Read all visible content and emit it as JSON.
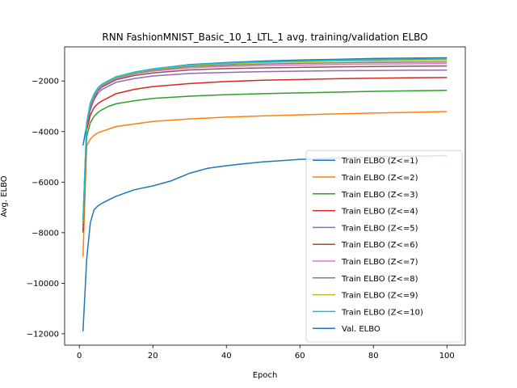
{
  "chart_data": {
    "type": "line",
    "title": "RNN FashionMNIST_Basic_10_1_LTL_1 avg. training/validation ELBO",
    "xlabel": "Epoch",
    "ylabel": "Avg. ELBO",
    "xlim": [
      -4,
      105
    ],
    "ylim": [
      -12450,
      -650
    ],
    "xticks": [
      0,
      20,
      40,
      60,
      80,
      100
    ],
    "yticks": [
      -12000,
      -10000,
      -8000,
      -6000,
      -4000,
      -2000
    ],
    "ytick_labels": [
      "−12000",
      "−10000",
      "−8000",
      "−6000",
      "−4000",
      "−2000"
    ],
    "grid": false,
    "legend_position": "lower-right",
    "series": [
      {
        "name": "Train ELBO (Z<=1)",
        "color": "#1f77b4",
        "points": [
          [
            1,
            -4550
          ],
          [
            2,
            -3750
          ],
          [
            3,
            -3150
          ],
          [
            4,
            -2700
          ],
          [
            5,
            -2400
          ],
          [
            6,
            -2250
          ],
          [
            8,
            -2050
          ],
          [
            10,
            -1850
          ],
          [
            15,
            -1650
          ],
          [
            20,
            -1520
          ],
          [
            30,
            -1350
          ],
          [
            40,
            -1270
          ],
          [
            50,
            -1210
          ],
          [
            60,
            -1170
          ],
          [
            70,
            -1140
          ],
          [
            80,
            -1110
          ],
          [
            90,
            -1095
          ],
          [
            100,
            -1080
          ]
        ]
      },
      {
        "name": "Train ELBO (Z<=2)",
        "color": "#ff7f0e",
        "points": [
          [
            1,
            -8950
          ],
          [
            2,
            -4550
          ],
          [
            3,
            -4300
          ],
          [
            4,
            -4150
          ],
          [
            5,
            -4050
          ],
          [
            6,
            -4000
          ],
          [
            8,
            -3900
          ],
          [
            10,
            -3800
          ],
          [
            15,
            -3700
          ],
          [
            20,
            -3600
          ],
          [
            30,
            -3500
          ],
          [
            40,
            -3430
          ],
          [
            50,
            -3380
          ],
          [
            60,
            -3340
          ],
          [
            70,
            -3300
          ],
          [
            80,
            -3270
          ],
          [
            90,
            -3240
          ],
          [
            100,
            -3210
          ]
        ]
      },
      {
        "name": "Train ELBO (Z<=3)",
        "color": "#2ca02c",
        "points": [
          [
            1,
            -8000
          ],
          [
            2,
            -4200
          ],
          [
            3,
            -3650
          ],
          [
            4,
            -3400
          ],
          [
            5,
            -3250
          ],
          [
            6,
            -3150
          ],
          [
            8,
            -3000
          ],
          [
            10,
            -2900
          ],
          [
            15,
            -2780
          ],
          [
            20,
            -2690
          ],
          [
            30,
            -2600
          ],
          [
            40,
            -2540
          ],
          [
            50,
            -2500
          ],
          [
            60,
            -2470
          ],
          [
            70,
            -2440
          ],
          [
            80,
            -2410
          ],
          [
            90,
            -2390
          ],
          [
            100,
            -2370
          ]
        ]
      },
      {
        "name": "Train ELBO (Z<=4)",
        "color": "#d62728",
        "points": [
          [
            1,
            -7900
          ],
          [
            2,
            -3950
          ],
          [
            3,
            -3350
          ],
          [
            4,
            -3050
          ],
          [
            5,
            -2900
          ],
          [
            6,
            -2800
          ],
          [
            8,
            -2650
          ],
          [
            10,
            -2500
          ],
          [
            15,
            -2330
          ],
          [
            20,
            -2220
          ],
          [
            30,
            -2100
          ],
          [
            40,
            -2020
          ],
          [
            50,
            -1970
          ],
          [
            60,
            -1940
          ],
          [
            70,
            -1910
          ],
          [
            80,
            -1890
          ],
          [
            90,
            -1875
          ],
          [
            100,
            -1860
          ]
        ]
      },
      {
        "name": "Train ELBO (Z<=5)",
        "color": "#9467bd",
        "points": [
          [
            1,
            -7800
          ],
          [
            2,
            -3800
          ],
          [
            3,
            -3100
          ],
          [
            4,
            -2750
          ],
          [
            5,
            -2500
          ],
          [
            6,
            -2350
          ],
          [
            8,
            -2200
          ],
          [
            10,
            -2050
          ],
          [
            15,
            -1900
          ],
          [
            20,
            -1800
          ],
          [
            30,
            -1700
          ],
          [
            40,
            -1660
          ],
          [
            50,
            -1630
          ],
          [
            60,
            -1610
          ],
          [
            70,
            -1595
          ],
          [
            80,
            -1585
          ],
          [
            90,
            -1575
          ],
          [
            100,
            -1570
          ]
        ]
      },
      {
        "name": "Train ELBO (Z<=6)",
        "color": "#8c564b",
        "points": [
          [
            1,
            -7700
          ],
          [
            2,
            -3750
          ],
          [
            3,
            -3000
          ],
          [
            4,
            -2650
          ],
          [
            5,
            -2400
          ],
          [
            6,
            -2250
          ],
          [
            8,
            -2100
          ],
          [
            10,
            -1950
          ],
          [
            15,
            -1780
          ],
          [
            20,
            -1680
          ],
          [
            30,
            -1560
          ],
          [
            40,
            -1510
          ],
          [
            50,
            -1480
          ],
          [
            60,
            -1460
          ],
          [
            70,
            -1440
          ],
          [
            80,
            -1425
          ],
          [
            90,
            -1415
          ],
          [
            100,
            -1405
          ]
        ]
      },
      {
        "name": "Train ELBO (Z<=7)",
        "color": "#e377c2",
        "points": [
          [
            1,
            -7650
          ],
          [
            2,
            -3700
          ],
          [
            3,
            -2950
          ],
          [
            4,
            -2600
          ],
          [
            5,
            -2350
          ],
          [
            6,
            -2200
          ],
          [
            8,
            -2050
          ],
          [
            10,
            -1900
          ],
          [
            15,
            -1720
          ],
          [
            20,
            -1610
          ],
          [
            30,
            -1480
          ],
          [
            40,
            -1420
          ],
          [
            50,
            -1390
          ],
          [
            60,
            -1365
          ],
          [
            70,
            -1345
          ],
          [
            80,
            -1330
          ],
          [
            90,
            -1320
          ],
          [
            100,
            -1310
          ]
        ]
      },
      {
        "name": "Train ELBO (Z<=8)",
        "color": "#7f7f7f",
        "points": [
          [
            1,
            -7600
          ],
          [
            2,
            -3680
          ],
          [
            3,
            -2900
          ],
          [
            4,
            -2550
          ],
          [
            5,
            -2320
          ],
          [
            6,
            -2180
          ],
          [
            8,
            -2020
          ],
          [
            10,
            -1870
          ],
          [
            15,
            -1690
          ],
          [
            20,
            -1570
          ],
          [
            30,
            -1430
          ],
          [
            40,
            -1370
          ],
          [
            50,
            -1330
          ],
          [
            60,
            -1300
          ],
          [
            70,
            -1280
          ],
          [
            80,
            -1265
          ],
          [
            90,
            -1255
          ],
          [
            100,
            -1245
          ]
        ]
      },
      {
        "name": "Train ELBO (Z<=9)",
        "color": "#bcbd22",
        "points": [
          [
            1,
            -7550
          ],
          [
            2,
            -3660
          ],
          [
            3,
            -2880
          ],
          [
            4,
            -2530
          ],
          [
            5,
            -2300
          ],
          [
            6,
            -2160
          ],
          [
            8,
            -2000
          ],
          [
            10,
            -1850
          ],
          [
            15,
            -1670
          ],
          [
            20,
            -1540
          ],
          [
            30,
            -1390
          ],
          [
            40,
            -1320
          ],
          [
            50,
            -1270
          ],
          [
            60,
            -1240
          ],
          [
            70,
            -1215
          ],
          [
            80,
            -1200
          ],
          [
            90,
            -1185
          ],
          [
            100,
            -1175
          ]
        ]
      },
      {
        "name": "Train ELBO (Z<=10)",
        "color": "#17becf",
        "points": [
          [
            1,
            -7500
          ],
          [
            2,
            -3640
          ],
          [
            3,
            -2860
          ],
          [
            4,
            -2510
          ],
          [
            5,
            -2280
          ],
          [
            6,
            -2140
          ],
          [
            8,
            -1980
          ],
          [
            10,
            -1830
          ],
          [
            15,
            -1650
          ],
          [
            20,
            -1520
          ],
          [
            30,
            -1360
          ],
          [
            40,
            -1290
          ],
          [
            50,
            -1240
          ],
          [
            60,
            -1205
          ],
          [
            70,
            -1175
          ],
          [
            80,
            -1155
          ],
          [
            90,
            -1140
          ],
          [
            100,
            -1125
          ]
        ]
      },
      {
        "name": "Val. ELBO",
        "color": "#1f77b4",
        "points": [
          [
            1,
            -11900
          ],
          [
            2,
            -9050
          ],
          [
            3,
            -7600
          ],
          [
            4,
            -7100
          ],
          [
            5,
            -6950
          ],
          [
            6,
            -6850
          ],
          [
            8,
            -6700
          ],
          [
            10,
            -6560
          ],
          [
            15,
            -6300
          ],
          [
            20,
            -6150
          ],
          [
            25,
            -5950
          ],
          [
            30,
            -5650
          ],
          [
            35,
            -5450
          ],
          [
            40,
            -5350
          ],
          [
            45,
            -5270
          ],
          [
            50,
            -5200
          ],
          [
            55,
            -5150
          ],
          [
            60,
            -5100
          ],
          [
            65,
            -5080
          ],
          [
            70,
            -5050
          ],
          [
            75,
            -5030
          ],
          [
            80,
            -5010
          ],
          [
            85,
            -4990
          ],
          [
            90,
            -4975
          ],
          [
            95,
            -4965
          ],
          [
            100,
            -4950
          ]
        ]
      }
    ]
  }
}
